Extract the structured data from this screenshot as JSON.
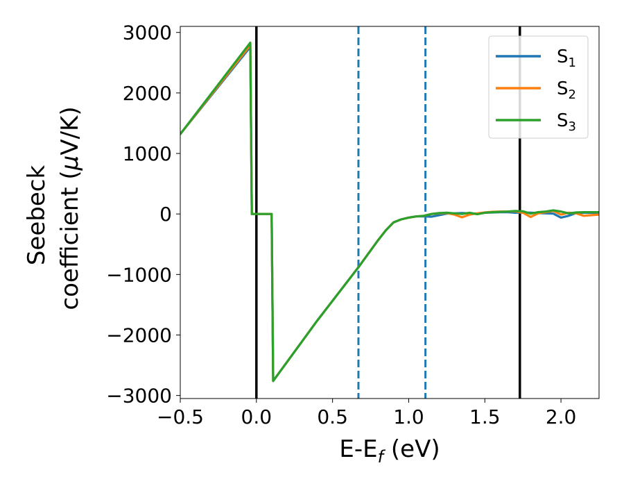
{
  "chart_data": {
    "type": "line",
    "xlabel": "E-E",
    "xlabel_sub": "f",
    "xlabel_unit": " (eV)",
    "ylabel_line1": "Seebeck",
    "ylabel_line2": "coefficient  (",
    "ylabel_mu": "μ",
    "ylabel_unit": "V/K)",
    "xlim": [
      -0.5,
      2.25
    ],
    "ylim": [
      -3050,
      3100
    ],
    "xticks": [
      -0.5,
      0.0,
      0.5,
      1.0,
      1.5,
      2.0
    ],
    "xtick_labels": [
      "−0.5",
      "0.0",
      "0.5",
      "1.0",
      "1.5",
      "2.0"
    ],
    "yticks": [
      3000,
      2000,
      1000,
      0,
      -1000,
      -2000,
      -3000
    ],
    "ytick_labels": [
      "3000",
      "2000",
      "1000",
      "0",
      "−1000",
      "−2000",
      "−3000"
    ],
    "grid": false,
    "legend_position": "top-right",
    "vlines": [
      {
        "x": 0.0,
        "style": "solid",
        "color": "#000000"
      },
      {
        "x": 1.73,
        "style": "solid",
        "color": "#000000"
      },
      {
        "x": 0.67,
        "style": "dashed",
        "color": "#1f77b4"
      },
      {
        "x": 1.11,
        "style": "dashed",
        "color": "#1f77b4"
      }
    ],
    "series": [
      {
        "name": "S",
        "sub": "1",
        "color": "#1f77b4",
        "x": [
          -0.5,
          -0.04,
          -0.03,
          0.1,
          0.11,
          0.4,
          0.67,
          0.8,
          0.85,
          0.9,
          0.95,
          1.0,
          1.05,
          1.1,
          1.15,
          1.2,
          1.25,
          1.3,
          1.35,
          1.4,
          1.45,
          1.5,
          1.55,
          1.6,
          1.65,
          1.7,
          1.75,
          1.8,
          1.85,
          1.9,
          1.95,
          2.0,
          2.05,
          2.1,
          2.15,
          2.2,
          2.25
        ],
        "y": [
          1320,
          2760,
          0,
          0,
          -2760,
          -1760,
          -880,
          -430,
          -270,
          -140,
          -90,
          -60,
          -40,
          -40,
          -45,
          -20,
          5,
          10,
          15,
          10,
          5,
          20,
          25,
          30,
          30,
          20,
          25,
          20,
          15,
          10,
          5,
          -60,
          -30,
          15,
          20,
          20,
          20
        ]
      },
      {
        "name": "S",
        "sub": "2",
        "color": "#ff7f0e",
        "x": [
          -0.5,
          -0.04,
          -0.03,
          0.1,
          0.11,
          0.4,
          0.67,
          0.8,
          0.85,
          0.9,
          0.95,
          1.0,
          1.05,
          1.1,
          1.15,
          1.2,
          1.25,
          1.3,
          1.35,
          1.4,
          1.45,
          1.5,
          1.55,
          1.6,
          1.65,
          1.7,
          1.75,
          1.8,
          1.85,
          1.9,
          1.95,
          2.0,
          2.05,
          2.1,
          2.15,
          2.2,
          2.25
        ],
        "y": [
          1320,
          2790,
          0,
          0,
          -2760,
          -1760,
          -880,
          -430,
          -270,
          -140,
          -90,
          -60,
          -40,
          -30,
          0,
          10,
          15,
          -10,
          -55,
          -10,
          10,
          25,
          35,
          40,
          40,
          45,
          20,
          -50,
          10,
          30,
          50,
          -10,
          20,
          10,
          -30,
          -20,
          -10
        ]
      },
      {
        "name": "S",
        "sub": "3",
        "color": "#2ca02c",
        "x": [
          -0.5,
          -0.04,
          -0.03,
          0.1,
          0.11,
          0.4,
          0.67,
          0.8,
          0.85,
          0.9,
          0.95,
          1.0,
          1.05,
          1.1,
          1.15,
          1.2,
          1.25,
          1.3,
          1.35,
          1.4,
          1.45,
          1.5,
          1.55,
          1.6,
          1.65,
          1.7,
          1.75,
          1.8,
          1.85,
          1.9,
          1.95,
          2.0,
          2.05,
          2.1,
          2.15,
          2.2,
          2.25
        ],
        "y": [
          1320,
          2830,
          0,
          0,
          -2760,
          -1760,
          -880,
          -430,
          -270,
          -140,
          -90,
          -60,
          -40,
          -30,
          0,
          15,
          20,
          10,
          0,
          20,
          -5,
          20,
          30,
          35,
          40,
          50,
          45,
          5,
          30,
          40,
          60,
          40,
          10,
          25,
          30,
          30,
          30
        ]
      }
    ]
  }
}
